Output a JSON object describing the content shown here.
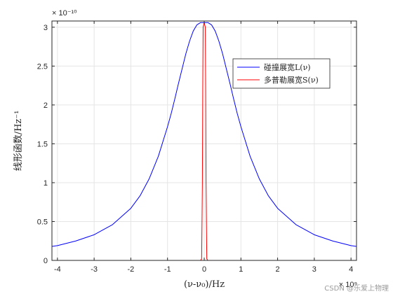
{
  "chart_data": {
    "type": "line",
    "title": "",
    "xlabel": "(ν-ν₀)/Hz",
    "ylabel": "线形函数/Hz⁻¹",
    "x_multiplier": "× 10⁹",
    "y_multiplier": "× 10⁻¹⁰",
    "xlim": [
      -4.15,
      4.15
    ],
    "ylim": [
      0,
      3.08
    ],
    "xticks": [
      -4,
      -3,
      -2,
      -1,
      0,
      1,
      2,
      3,
      4
    ],
    "xtick_labels": [
      "-4",
      "-3",
      "-2",
      "-1",
      "0",
      "1",
      "2",
      "3",
      "4"
    ],
    "yticks": [
      0,
      0.5,
      1,
      1.5,
      2,
      2.5,
      3
    ],
    "ytick_labels": [
      "0",
      "0.5",
      "1",
      "1.5",
      "2",
      "2.5",
      "3"
    ],
    "grid": true,
    "legend_position": "top-right",
    "series": [
      {
        "name": "碰撞展宽L(ν)",
        "color": "#0000ff",
        "x": [
          -4.15,
          -4,
          -3.5,
          -3,
          -2.5,
          -2,
          -1.75,
          -1.5,
          -1.25,
          -1,
          -0.9,
          -0.8,
          -0.7,
          -0.6,
          -0.5,
          -0.4,
          -0.3,
          -0.2,
          -0.1,
          0,
          0.1,
          0.2,
          0.3,
          0.4,
          0.5,
          0.6,
          0.7,
          0.8,
          0.9,
          1,
          1.25,
          1.5,
          1.75,
          2,
          2.5,
          3,
          3.5,
          4,
          4.15
        ],
        "y": [
          0.18,
          0.19,
          0.25,
          0.33,
          0.46,
          0.67,
          0.83,
          1.05,
          1.34,
          1.72,
          1.89,
          2.08,
          2.28,
          2.47,
          2.66,
          2.82,
          2.95,
          3.03,
          3.06,
          3.06,
          3.06,
          3.03,
          2.95,
          2.82,
          2.66,
          2.47,
          2.28,
          2.08,
          1.89,
          1.72,
          1.34,
          1.05,
          0.83,
          0.67,
          0.46,
          0.33,
          0.25,
          0.19,
          0.18
        ]
      },
      {
        "name": "多普勒展宽S(ν)",
        "color": "#ff0000",
        "x": [
          -4.15,
          -0.1,
          -0.07,
          -0.05,
          -0.04,
          -0.03,
          0,
          0.03,
          0.04,
          0.05,
          0.07,
          0.1,
          4.15
        ],
        "y": [
          0,
          0,
          0.02,
          1.0,
          2.2,
          3.0,
          3.06,
          3.0,
          2.2,
          1.0,
          0.02,
          0,
          0
        ]
      }
    ]
  },
  "watermark": "CSDN @乐爱上物理"
}
